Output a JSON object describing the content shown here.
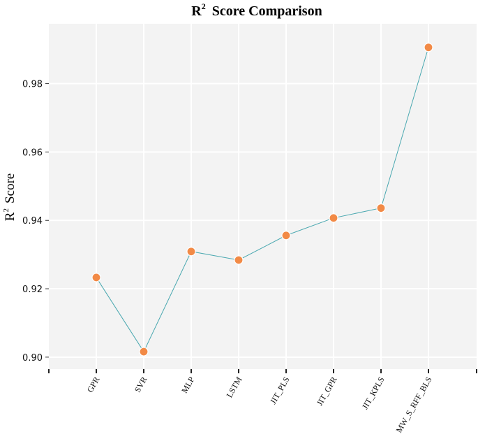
{
  "chart_data": {
    "type": "line",
    "title": "R² Score Comparison",
    "title_main": "R",
    "title_sup": "2",
    "title_rest": "Score Comparison",
    "xlabel": "",
    "ylabel": "R² Score",
    "ylabel_main": "R",
    "ylabel_sup": "2",
    "ylabel_rest": "Score",
    "categories": [
      "GPR",
      "SVR",
      "MLP",
      "LSTM",
      "JIT_PLS",
      "JIT_GPR",
      "JIT_KPLS",
      "MW_S_RFF_BLS"
    ],
    "values": [
      0.9233,
      0.9016,
      0.9309,
      0.9284,
      0.9356,
      0.9407,
      0.9436,
      0.9906
    ],
    "y_ticks": [
      "0.90",
      "0.92",
      "0.94",
      "0.96",
      "0.98"
    ],
    "y_tick_values": [
      0.9,
      0.92,
      0.94,
      0.96,
      0.98
    ],
    "ylim": [
      0.8965,
      0.9975
    ],
    "grid": true,
    "line_color": "#4aa8b0",
    "marker_color": "#f28a46",
    "panel_background": "#f3f3f3",
    "grid_color": "#ffffff"
  }
}
